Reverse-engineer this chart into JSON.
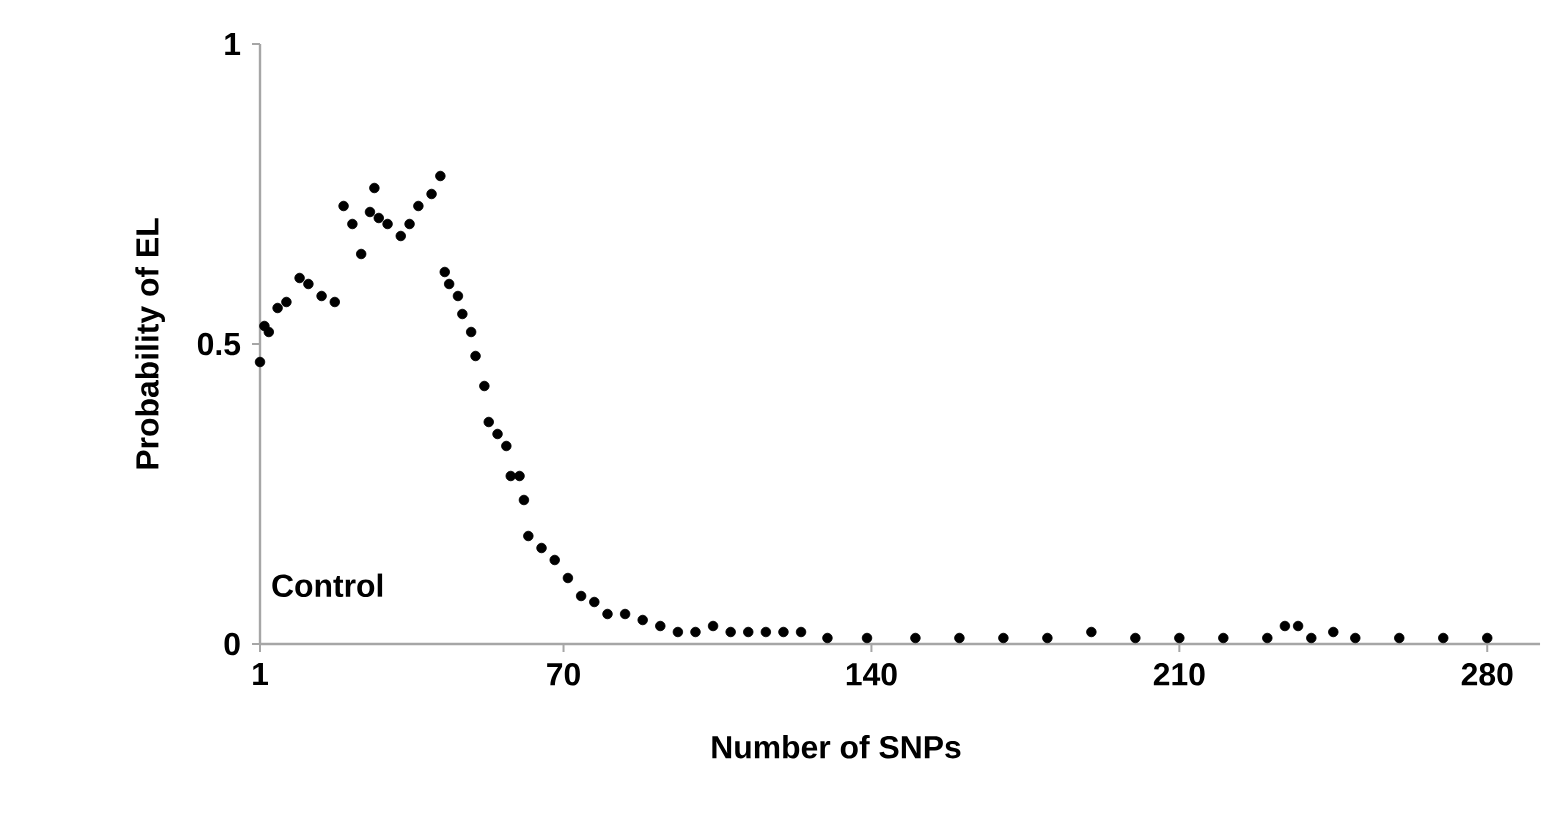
{
  "chart_data": {
    "type": "scatter",
    "xlabel": "Number of SNPs",
    "ylabel": "Probability of EL",
    "annotations": [
      "Control"
    ],
    "marker": "circle",
    "grid": false,
    "xlim": [
      1,
      292
    ],
    "xticks": [
      1,
      70,
      140,
      210,
      280
    ],
    "ylim": [
      0,
      1
    ],
    "yticks": [
      0,
      0.5,
      1
    ],
    "series": [
      {
        "color": "#000000",
        "x": [
          1,
          2,
          3,
          5,
          7,
          10,
          12,
          15,
          18,
          20,
          22,
          24,
          26,
          27,
          28,
          30,
          33,
          35,
          37,
          40,
          42,
          43,
          44,
          46,
          47,
          49,
          50,
          52,
          53,
          55,
          57,
          58,
          60,
          61,
          62,
          65,
          68,
          71,
          74,
          77,
          80,
          84,
          88,
          92,
          96,
          100,
          104,
          108,
          112,
          116,
          120,
          124,
          130,
          139,
          150,
          160,
          170,
          180,
          190,
          200,
          210,
          220,
          230,
          234,
          237,
          240,
          245,
          250,
          260,
          270,
          280
        ],
        "values": [
          0.47,
          0.53,
          0.52,
          0.56,
          0.57,
          0.61,
          0.6,
          0.58,
          0.57,
          0.73,
          0.7,
          0.65,
          0.72,
          0.76,
          0.71,
          0.7,
          0.68,
          0.7,
          0.73,
          0.75,
          0.78,
          0.62,
          0.6,
          0.58,
          0.55,
          0.52,
          0.48,
          0.43,
          0.37,
          0.35,
          0.33,
          0.28,
          0.28,
          0.24,
          0.18,
          0.16,
          0.14,
          0.11,
          0.08,
          0.07,
          0.05,
          0.05,
          0.04,
          0.03,
          0.02,
          0.02,
          0.03,
          0.02,
          0.02,
          0.02,
          0.02,
          0.02,
          0.01,
          0.01,
          0.01,
          0.01,
          0.01,
          0.01,
          0.02,
          0.01,
          0.01,
          0.01,
          0.01,
          0.03,
          0.03,
          0.01,
          0.02,
          0.01,
          0.01,
          0.01,
          0.01
        ]
      }
    ]
  }
}
